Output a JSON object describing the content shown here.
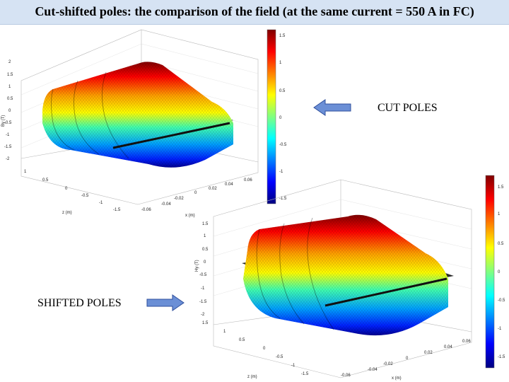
{
  "slide": {
    "title": "Cut-shifted poles: the comparison of the field (at the same current = 550 A in FC)",
    "labels": {
      "cut": "CUT POLES",
      "shifted": "SHIFTED POLES"
    }
  },
  "plots": {
    "top": {
      "z_ticks": [
        "2",
        "1.5",
        "1",
        "0.5",
        "0",
        "-0.5",
        "-1",
        "-1.5",
        "-2"
      ],
      "zlabel": "By (T)",
      "x_ticks": [
        "1",
        "0.5",
        "0",
        "-0.5",
        "-1",
        "-1.5"
      ],
      "xlabel": "z (m)",
      "y_ticks": [
        "0.06",
        "0.04",
        "0.02",
        "0",
        "-0.02",
        "-0.04",
        "-0.06"
      ],
      "ylabel": "x (m)",
      "colorbar_ticks": [
        "1.5",
        "1",
        "0.5",
        "0",
        "-0.5",
        "-1",
        "-1.5"
      ]
    },
    "bottom": {
      "z_ticks": [
        "1.5",
        "1",
        "0.5",
        "0",
        "-0.5",
        "-1",
        "-1.5",
        "-2"
      ],
      "zlabel": "Hy (T)",
      "x_ticks": [
        "1.5",
        "1",
        "0.5",
        "0",
        "-0.5",
        "-1",
        "-1.5"
      ],
      "xlabel": "z (m)",
      "y_ticks": [
        "0.06",
        "0.04",
        "0.02",
        "0",
        "-0.02",
        "-0.04",
        "-0.06"
      ],
      "ylabel": "x (m)",
      "colorbar_ticks": [
        "1.5",
        "1",
        "0.5",
        "0",
        "-0.5",
        "-1",
        "-1.5"
      ]
    }
  },
  "colors": {
    "arrow_fill": "#6b8fd6",
    "arrow_stroke": "#2f4f9c",
    "title_bar": "#d6e3f3"
  },
  "icons": {
    "cut_arrow": "arrow-left-icon",
    "shifted_arrow": "arrow-right-icon"
  }
}
